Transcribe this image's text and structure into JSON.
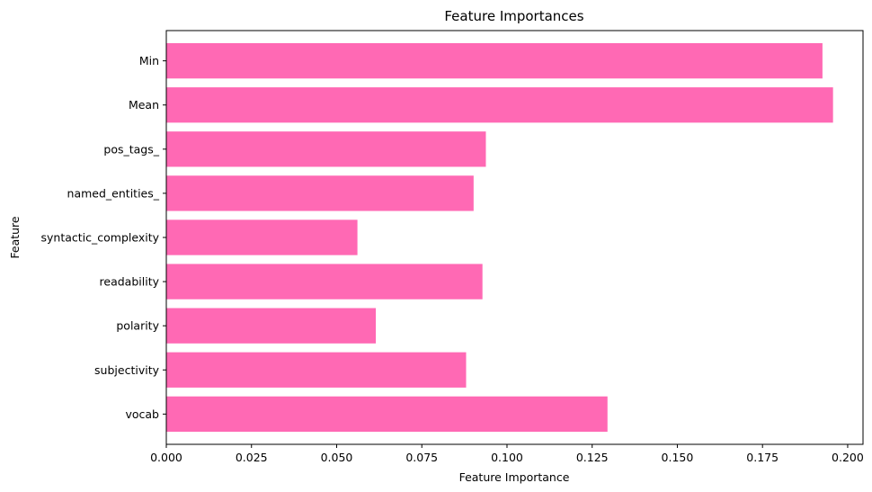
{
  "chart_data": {
    "type": "bar",
    "orientation": "horizontal",
    "title": "Feature Importances",
    "xlabel": "Feature Importance",
    "ylabel": "Feature",
    "categories": [
      "vocab",
      "subjectivity",
      "polarity",
      "readability",
      "syntactic_complexity",
      "named_entities_",
      "pos_tags_",
      "Mean",
      "Min"
    ],
    "values": [
      0.1295,
      0.088,
      0.0615,
      0.0928,
      0.0561,
      0.0902,
      0.0938,
      0.1957,
      0.1926
    ],
    "xlim": [
      0,
      0.2045
    ],
    "xticks": [
      0.0,
      0.025,
      0.05,
      0.075,
      0.1,
      0.125,
      0.15,
      0.175,
      0.2
    ],
    "xtick_labels": [
      "0.000",
      "0.025",
      "0.050",
      "0.075",
      "0.100",
      "0.125",
      "0.150",
      "0.175",
      "0.200"
    ],
    "bar_color": "#ff69b4",
    "grid": false,
    "legend": "none"
  }
}
